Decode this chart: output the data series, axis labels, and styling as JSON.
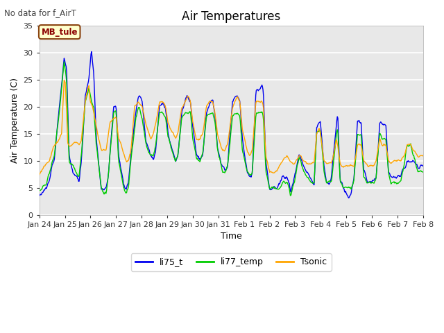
{
  "title": "Air Temperatures",
  "xlabel": "Time",
  "ylabel": "Air Temperature (C)",
  "note": "No data for f_AirT",
  "site_label": "MB_tule",
  "ylim": [
    0,
    35
  ],
  "plot_bg_color": "#e8e8e8",
  "series": {
    "li75_t": {
      "color": "#0000ee",
      "linewidth": 1.0
    },
    "li77_temp": {
      "color": "#00cc00",
      "linewidth": 1.0
    },
    "Tsonic": {
      "color": "#ffa500",
      "linewidth": 1.0
    }
  },
  "xtick_labels": [
    "Jan 24",
    "Jan 25",
    "Jan 26",
    "Jan 27",
    "Jan 28",
    "Jan 29",
    "Jan 30",
    "Jan 31",
    "Feb 1",
    "Feb 2",
    "Feb 3",
    "Feb 4",
    "Feb 5",
    "Feb 6",
    "Feb 7",
    "Feb 8"
  ],
  "ytick_vals": [
    0,
    5,
    10,
    15,
    20,
    25,
    30,
    35
  ]
}
